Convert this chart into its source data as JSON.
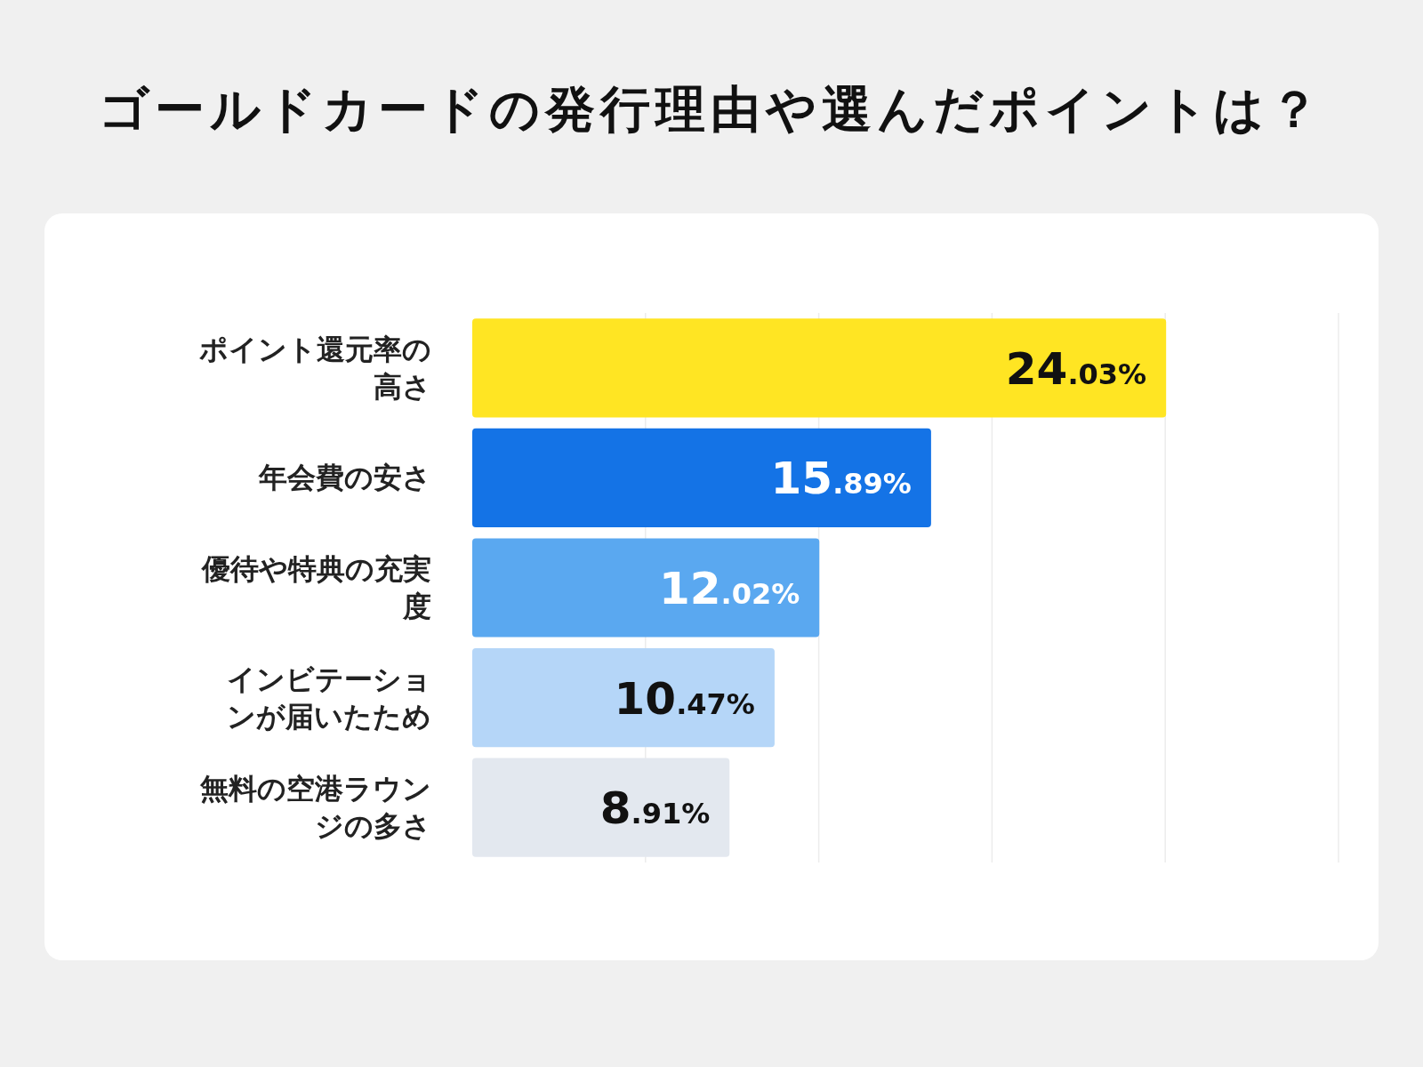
{
  "chart_data": {
    "type": "bar",
    "orientation": "horizontal",
    "title": "ゴールドカードの発行理由や選んだポイントは？",
    "categories": [
      "ポイント還元率の高さ",
      "年会費の安さ",
      "優待や特典の充実度",
      "インビテーションが届いたため",
      "無料の空港ラウンジの多さ"
    ],
    "values": [
      24.03,
      15.89,
      12.02,
      10.47,
      8.91
    ],
    "colors": [
      "#ffe523",
      "#1473e6",
      "#5aa8f0",
      "#b5d6f8",
      "#e3e8ef"
    ],
    "value_labels": [
      "24.03%",
      "15.89%",
      "12.02%",
      "10.47%",
      "8.91%"
    ],
    "xlim": [
      0,
      30
    ],
    "xticks": [
      {
        "value": 6,
        "label": null
      },
      {
        "value": 12,
        "label": null
      },
      {
        "value": 18,
        "label": null
      },
      {
        "value": 24,
        "label": null
      },
      {
        "value": 30,
        "label": null
      }
    ],
    "tick_labels": "y",
    "grid": "x"
  }
}
